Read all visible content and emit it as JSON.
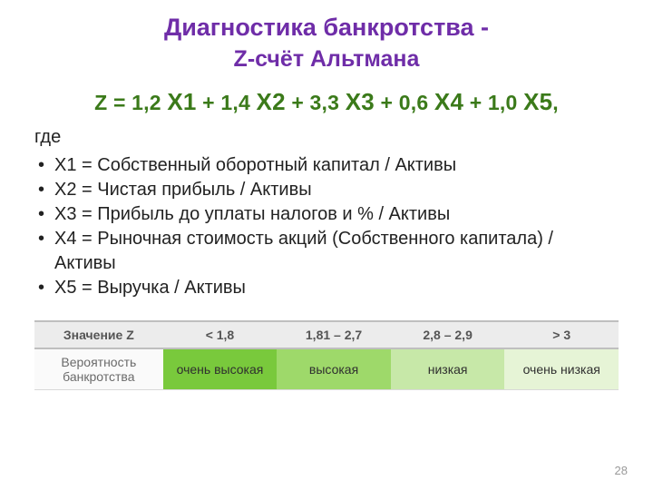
{
  "title": {
    "line1": "Диагностика банкротства -",
    "line2": "Z-счёт Альтмана"
  },
  "formula": {
    "prefix": "Z = ",
    "terms": [
      {
        "coef": "1,2 ",
        "var": "Х1"
      },
      {
        "plus": " + ",
        "coef": "1,4 ",
        "var": "Х2"
      },
      {
        "plus": " + ",
        "coef": "3,3 ",
        "var": "Х3"
      },
      {
        "plus": " + ",
        "coef": "0,6 ",
        "var": "Х4"
      },
      {
        "plus": " + ",
        "coef": "1,0 ",
        "var": "Х5"
      }
    ],
    "suffix": ","
  },
  "where_label": "где",
  "definitions": [
    "Х1 = Собственный оборотный капитал / Активы",
    "Х2 = Чистая прибыль / Активы",
    "Х3 = Прибыль до уплаты налогов и % / Активы",
    "Х4 = Рыночная стоимость акций (Собственного капитала) / Активы",
    "Х5 = Выручка / Активы"
  ],
  "table": {
    "header": [
      "Значение Z",
      "< 1,8",
      "1,81 – 2,7",
      "2,8 – 2,9",
      "> 3"
    ],
    "row_label": "Вероятность банкротства",
    "cells": [
      "очень высокая",
      "высокая",
      "низкая",
      "очень низкая"
    ],
    "cell_bg": [
      "#79c93c",
      "#9ed96a",
      "#c7e8a8",
      "#e6f4d6"
    ],
    "col_widths_pct": [
      22,
      19.5,
      19.5,
      19.5,
      19.5
    ],
    "border_color": "#d9d9d9",
    "header_bg": "#ececec",
    "header_text_color": "#555555",
    "row_label_bg": "#fafafa",
    "row_label_text_color": "#6a6a6a"
  },
  "colors": {
    "title": "#6f2da8",
    "formula": "#3b7a1a",
    "body_text": "#222222",
    "page_bg": "#ffffff",
    "pagenum": "#9a9a9a"
  },
  "page_number": "28"
}
